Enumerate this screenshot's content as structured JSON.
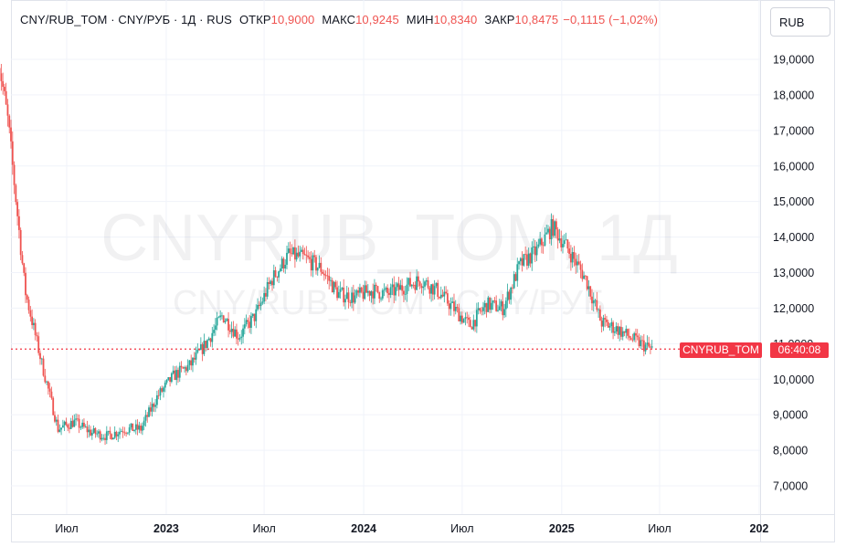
{
  "header": {
    "symbol": "CNY/RUB_TOM · CNY/РУБ · 1Д · RUS",
    "open_label": "ОТКР",
    "open_value": "10,9000",
    "high_label": "МАКС",
    "high_value": "10,9245",
    "low_label": "МИН",
    "low_value": "10,8340",
    "close_label": "ЗАКР",
    "close_value": "10,8475",
    "change": "−0,1115 (−1,02%)"
  },
  "currency_button": "RUB",
  "watermark": {
    "line1": "CNYRUB_TOM, 1Д",
    "line2": "CNY/RUB_TOM · CNY/РУБ"
  },
  "price_tag": {
    "symbol": "CNYRUB_TOM",
    "countdown": "06:40:08"
  },
  "colors": {
    "up": "#26a69a",
    "down": "#ef5350",
    "tag": "#f23645",
    "grid": "#f0f3fa"
  },
  "chart_data": {
    "type": "line",
    "style": "candlestick",
    "y_axis_labels": [
      "19,0000",
      "18,0000",
      "17,0000",
      "16,0000",
      "15,0000",
      "14,0000",
      "13,0000",
      "12,0000",
      "11,0000",
      "10,0000",
      "9,0000",
      "8,0000",
      "7,0000"
    ],
    "x_axis_labels": [
      "Июл",
      "2023",
      "Июл",
      "2024",
      "Июл",
      "2025",
      "Июл",
      "202"
    ],
    "ylim": [
      6.4,
      19.9
    ],
    "grid": true,
    "last_price": 10.8475,
    "series": [
      {
        "x": [
          "2022-03",
          "2022-04",
          "2022-05",
          "2022-06",
          "2022-07",
          "2022-08",
          "2022-09",
          "2022-10",
          "2022-11",
          "2022-12",
          "2023-01",
          "2023-02",
          "2023-03",
          "2023-04",
          "2023-05",
          "2023-06",
          "2023-07",
          "2023-08",
          "2023-09",
          "2023-10",
          "2023-11",
          "2023-12",
          "2024-01",
          "2024-02",
          "2024-03",
          "2024-04",
          "2024-05",
          "2024-06",
          "2024-07",
          "2024-08",
          "2024-09",
          "2024-10",
          "2024-11",
          "2024-12",
          "2025-01",
          "2025-02",
          "2025-03",
          "2025-04",
          "2025-05",
          "2025-06"
        ],
        "values": [
          17.2,
          12.5,
          10.5,
          8.6,
          8.8,
          8.5,
          8.4,
          8.6,
          8.6,
          9.5,
          10.1,
          10.4,
          11.0,
          11.8,
          11.2,
          11.8,
          12.8,
          13.5,
          13.4,
          13.1,
          12.4,
          12.3,
          12.5,
          12.4,
          12.6,
          12.8,
          12.5,
          12.0,
          11.5,
          12.1,
          12.0,
          13.2,
          13.6,
          14.3,
          13.6,
          12.8,
          11.6,
          11.4,
          11.1,
          10.85
        ]
      }
    ]
  }
}
